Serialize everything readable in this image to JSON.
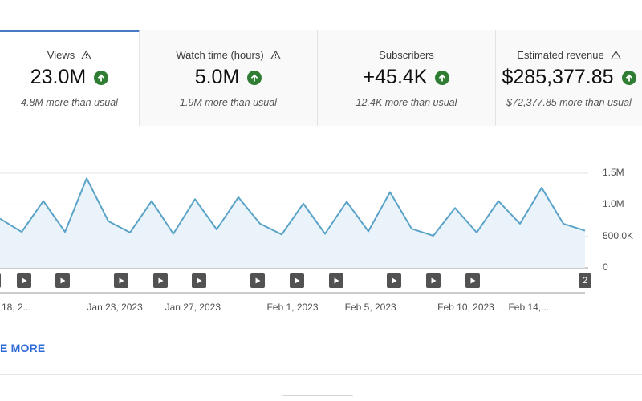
{
  "cards": [
    {
      "label": "Views",
      "value": "23.0M",
      "delta": "4.8M more than usual",
      "selected": true
    },
    {
      "label": "Watch time (hours)",
      "value": "5.0M",
      "delta": "1.9M more than usual",
      "selected": false
    },
    {
      "label": "Subscribers",
      "value": "+45.4K",
      "delta": "12.4K more than usual",
      "selected": false
    },
    {
      "label": "Estimated revenue",
      "value": "$285,377.85",
      "delta": "$72,377.85 more than usual",
      "selected": false
    }
  ],
  "chart_data": {
    "type": "area",
    "title": "",
    "xlabel": "",
    "ylabel": "",
    "ylim": [
      0,
      1500000
    ],
    "y_tick_labels": [
      "1.5M",
      "1.0M",
      "500.0K",
      "0"
    ],
    "y_tick_values": [
      1500000,
      1000000,
      500000,
      0
    ],
    "x_tick_labels": [
      "18, 2...",
      "Jan 23, 2023",
      "Jan 27, 2023",
      "Feb 1, 2023",
      "Feb 5, 2023",
      "Feb 10, 2023",
      "Feb 14,..."
    ],
    "x_tick_index": [
      0.6,
      5.3,
      8.9,
      13.5,
      17.1,
      21.5,
      24.4
    ],
    "series": [
      {
        "name": "Views",
        "values": [
          780000,
          570000,
          1060000,
          570000,
          1420000,
          740000,
          560000,
          1060000,
          540000,
          1090000,
          610000,
          1120000,
          700000,
          530000,
          1020000,
          540000,
          1050000,
          580000,
          1200000,
          620000,
          510000,
          950000,
          560000,
          1060000,
          700000,
          1270000,
          700000,
          590000
        ]
      }
    ],
    "video_markers_index": [
      -0.3,
      1.1,
      2.9,
      5.6,
      7.4,
      9.2,
      11.9,
      13.7,
      15.5,
      18.2,
      20.0,
      21.8
    ],
    "video_count_badge": "2"
  },
  "see_more": "E MORE"
}
